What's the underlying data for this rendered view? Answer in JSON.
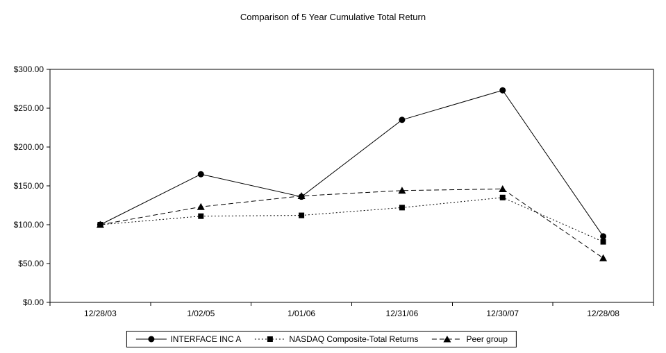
{
  "title": "Comparison of 5 Year Cumulative Total Return",
  "chart_data": {
    "type": "line",
    "title": "Comparison of 5 Year Cumulative Total Return",
    "categories": [
      "12/28/03",
      "1/02/05",
      "1/01/06",
      "12/31/06",
      "12/30/07",
      "12/28/08"
    ],
    "series": [
      {
        "name": "INTERFACE  INC A",
        "marker": "circle",
        "dash": "solid",
        "values": [
          100,
          165,
          136,
          235,
          273,
          85
        ]
      },
      {
        "name": "NASDAQ Composite-Total Returns",
        "marker": "square",
        "dash": "dotted",
        "values": [
          100,
          111,
          112,
          122,
          135,
          78
        ]
      },
      {
        "name": "Peer group",
        "marker": "triangle",
        "dash": "dashed",
        "values": [
          100,
          123,
          137,
          144,
          146,
          57
        ]
      }
    ],
    "ylim": [
      0,
      300
    ],
    "ytick_step": 50,
    "ytick_labels": [
      "$0.00",
      "$50.00",
      "$100.00",
      "$150.00",
      "$200.00",
      "$250.00",
      "$300.00"
    ],
    "xlabel": "",
    "ylabel": "",
    "grid": false,
    "legend_position": "bottom"
  },
  "colors": {
    "line": "#000000",
    "marker": "#000000",
    "background": "#ffffff",
    "border": "#000000"
  }
}
